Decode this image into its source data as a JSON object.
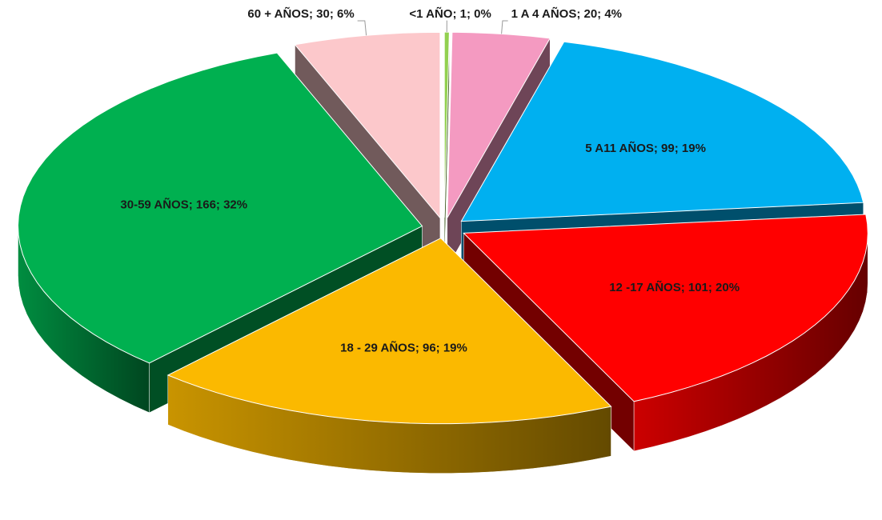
{
  "chart_data": {
    "type": "pie3d",
    "categories": [
      "<1 AÑO",
      "1 A 4 AÑOS",
      "5 A11 AÑOS",
      "12 -17 AÑOS",
      "18 - 29 AÑOS",
      "30-59 AÑOS",
      "60 + AÑOS"
    ],
    "values": [
      1,
      20,
      99,
      101,
      96,
      166,
      30
    ],
    "value_labels": [
      "<1 AÑO; 1; 0%",
      "1 A 4 AÑOS; 20; 4%",
      "5 A11 AÑOS; 99; 19%",
      "12 -17 AÑOS; 101; 20%",
      "18 - 29 AÑOS; 96; 19%",
      "30-59 AÑOS; 166; 32%",
      "60 + AÑOS; 30; 6%"
    ],
    "colors": [
      "#92d050",
      "#f49ac1",
      "#00b0f0",
      "#ff0000",
      "#fbb900",
      "#00b050",
      "#fcc8cb"
    ],
    "exploded": true
  }
}
